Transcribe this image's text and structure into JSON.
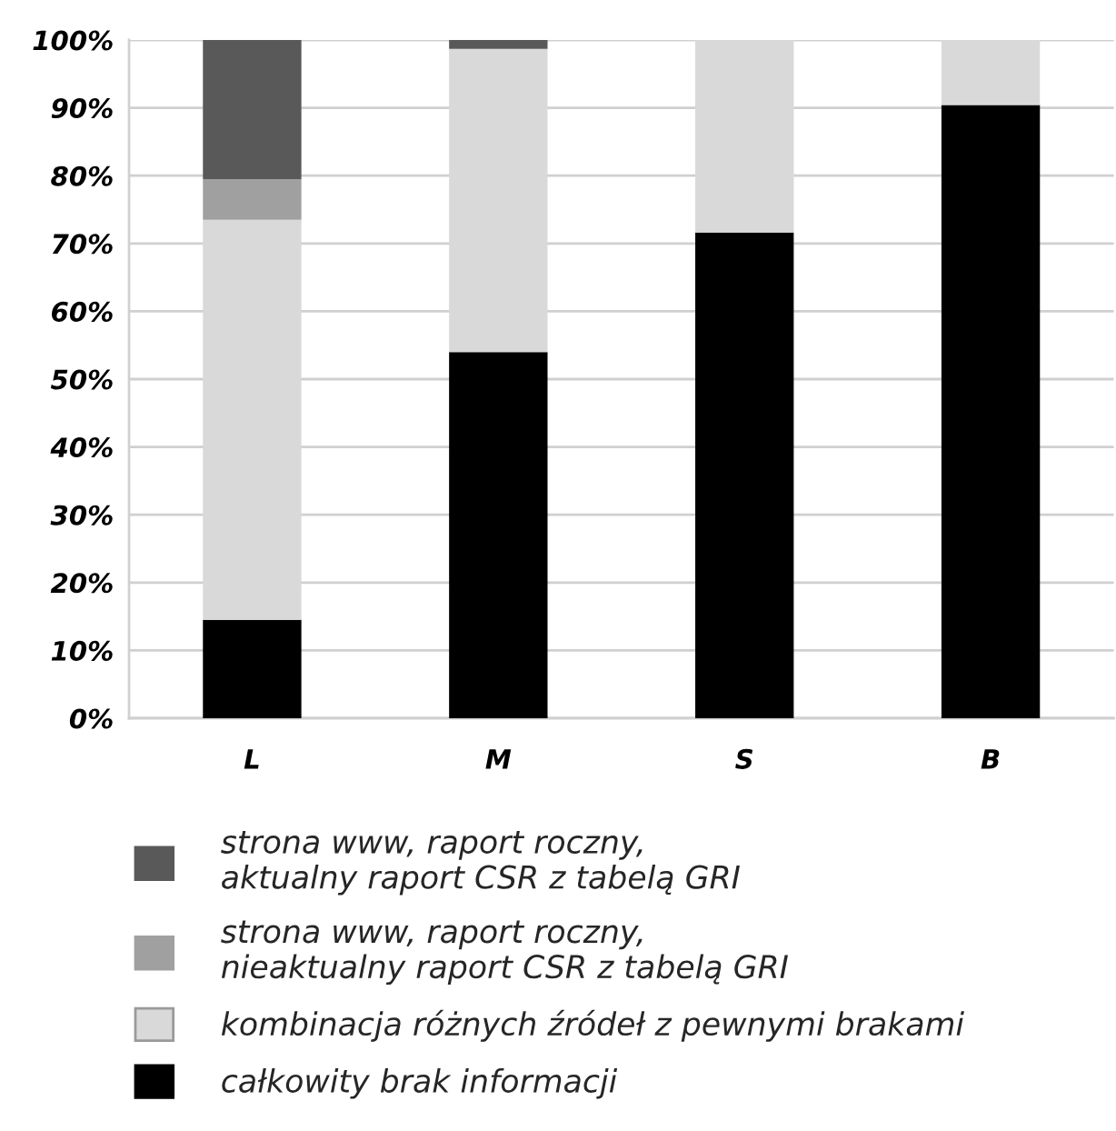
{
  "chart_data": {
    "type": "bar",
    "stacked": true,
    "categories": [
      "L",
      "M",
      "S",
      "B"
    ],
    "series": [
      {
        "name": "całkowity brak informacji",
        "color": "#000000",
        "values": [
          14.5,
          54,
          71.6,
          90.4
        ]
      },
      {
        "name": "kombinacja różnych źródeł z pewnymi brakami",
        "color": "#d9d9d9",
        "values": [
          59,
          44.7,
          28.4,
          9.6
        ]
      },
      {
        "name": "strona www, raport roczny,\nnieaktualny raport CSR z tabelą GRI",
        "color": "#a0a0a0",
        "values": [
          6,
          0,
          0,
          0
        ]
      },
      {
        "name": "strona www, raport roczny,\naktualny raport CSR z tabelą GRI",
        "color": "#595959",
        "values": [
          20.5,
          1.3,
          0,
          0
        ]
      }
    ],
    "ylim": [
      0,
      100
    ],
    "yticks": [
      {
        "value": 0,
        "label": "0%"
      },
      {
        "value": 10,
        "label": "10%"
      },
      {
        "value": 20,
        "label": "20%"
      },
      {
        "value": 30,
        "label": "30%"
      },
      {
        "value": 40,
        "label": "40%"
      },
      {
        "value": 50,
        "label": "50%"
      },
      {
        "value": 60,
        "label": "60%"
      },
      {
        "value": 70,
        "label": "70%"
      },
      {
        "value": 80,
        "label": "80%"
      },
      {
        "value": 90,
        "label": "90%"
      },
      {
        "value": 100,
        "label": "100%"
      }
    ],
    "grid": "y",
    "legend": "bottom"
  }
}
